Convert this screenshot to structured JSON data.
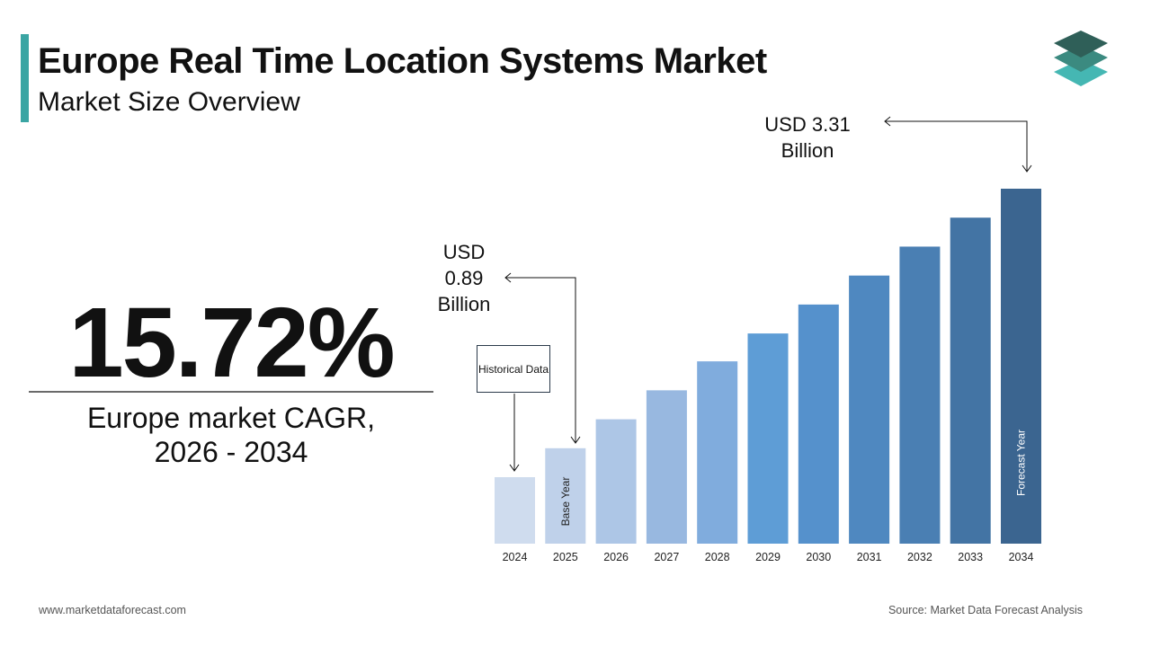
{
  "chart_data": {
    "type": "bar",
    "title": "Europe Real Time Location Systems Market",
    "subtitle": "Market Size Overview",
    "headline_value": "15.72%",
    "headline_caption": "Europe market CAGR, 2026 - 2034",
    "categories": [
      "2024",
      "2025",
      "2026",
      "2027",
      "2028",
      "2029",
      "2030",
      "2031",
      "2032",
      "2033",
      "2034"
    ],
    "values": [
      0.62,
      0.89,
      1.16,
      1.43,
      1.7,
      1.96,
      2.23,
      2.5,
      2.77,
      3.04,
      3.31
    ],
    "value_labels": [
      null,
      "USD 0.89 Billion",
      null,
      null,
      null,
      null,
      null,
      null,
      null,
      null,
      "USD 3.31 Billion"
    ],
    "colors": [
      "#cfdcee",
      "#bfd1ea",
      "#adc6e6",
      "#98b8e0",
      "#80acdd",
      "#5e9dd6",
      "#5591cc",
      "#4f88c0",
      "#4a7fb3",
      "#4374a4",
      "#3b6590"
    ],
    "annotations": {
      "historical": "Historical Data",
      "base_year": "Base Year",
      "forecast_year": "Forecast Year"
    },
    "website": "www.marketdataforecast.com",
    "source": "Source: Market Data Forecast Analysis"
  }
}
